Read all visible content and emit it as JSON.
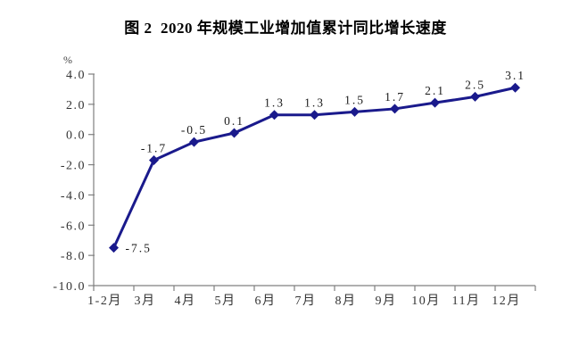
{
  "title": "图 2  2020 年规模工业增加值累计同比增长速度",
  "chart_data": {
    "type": "line",
    "title": "图 2  2020 年规模工业增加值累计同比增长速度",
    "unit_label": "%",
    "categories": [
      "1-2月",
      "3月",
      "4月",
      "5月",
      "6月",
      "7月",
      "8月",
      "9月",
      "10月",
      "11月",
      "12月"
    ],
    "values": [
      -7.5,
      -1.7,
      -0.5,
      0.1,
      1.3,
      1.3,
      1.5,
      1.7,
      2.1,
      2.5,
      3.1
    ],
    "data_labels": [
      "-7.5",
      "-1.7",
      "-0.5",
      "0.1",
      "1.3",
      "1.3",
      "1.5",
      "1.7",
      "2.1",
      "2.5",
      "3.1"
    ],
    "y_tick_labels": [
      "4.0",
      "2.0",
      "0.0",
      "-2.0",
      "-4.0",
      "-6.0",
      "-8.0",
      "-10.0"
    ],
    "ylim": [
      -10.0,
      4.0
    ],
    "y_step": 2.0,
    "grid": false,
    "legend": "none",
    "marker": "diamond",
    "line_color": "#1a1a8c",
    "axis_color": "#808080",
    "tick_text_color": "#333333",
    "label_text_color": "#1a1a1a",
    "background_color": "#ffffff"
  }
}
